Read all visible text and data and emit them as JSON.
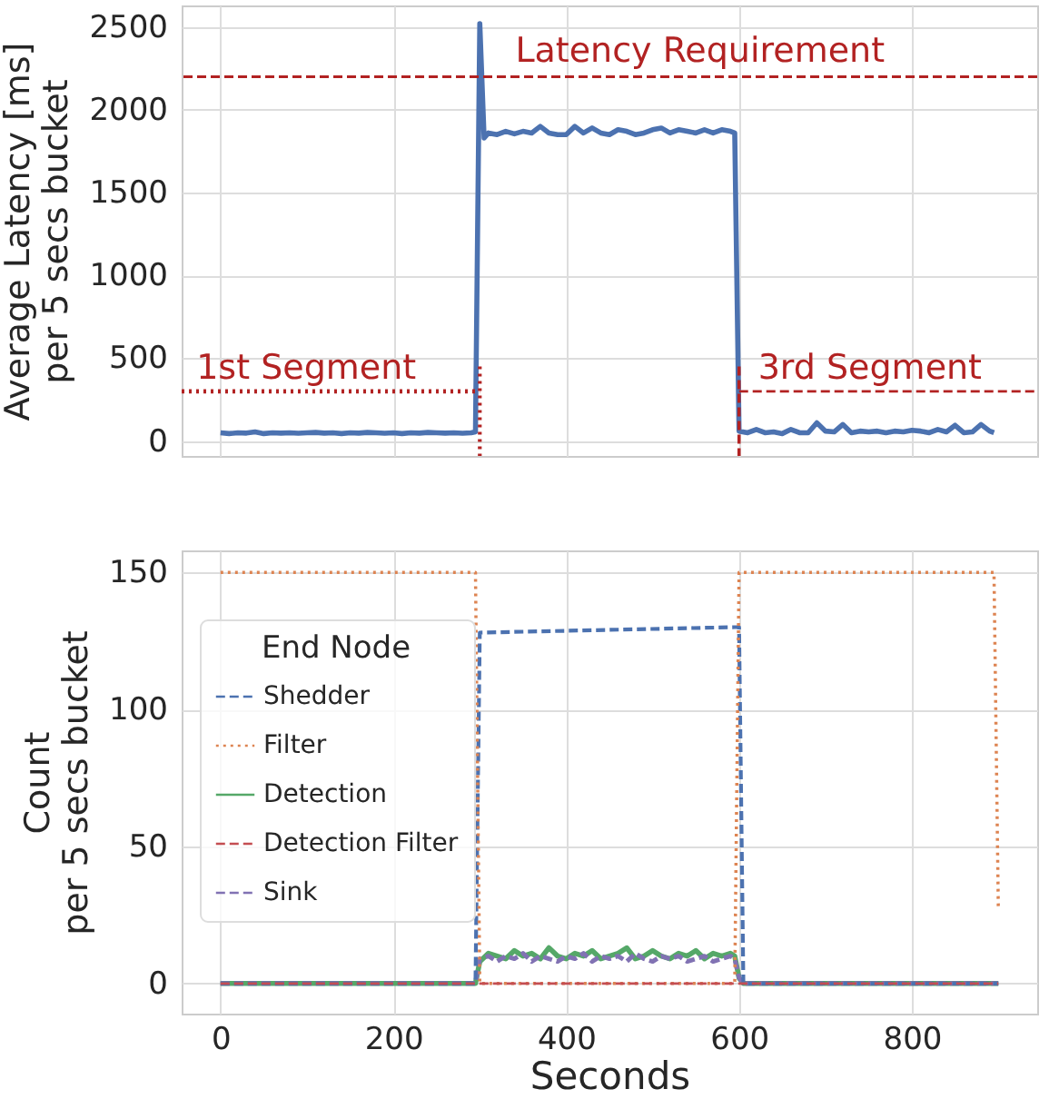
{
  "chart_data": [
    {
      "type": "line",
      "ylabel": "Average Latency [ms]\nper 5 secs bucket",
      "xlim": [
        -45,
        945
      ],
      "xticks": [
        0,
        200,
        400,
        600,
        800
      ],
      "ylim": [
        -90,
        2630
      ],
      "yticks": [
        0,
        500,
        1000,
        1500,
        2000,
        2500
      ],
      "grid": true,
      "tick_labels": "y",
      "series": [
        {
          "color": "#4c72b0",
          "line_style": "solid",
          "x": [
            0,
            10,
            20,
            30,
            40,
            50,
            60,
            70,
            80,
            90,
            100,
            110,
            120,
            130,
            140,
            150,
            160,
            170,
            180,
            190,
            200,
            210,
            220,
            230,
            240,
            250,
            260,
            270,
            280,
            290,
            295,
            300,
            305,
            310,
            320,
            330,
            340,
            350,
            360,
            370,
            380,
            390,
            400,
            410,
            420,
            430,
            440,
            450,
            460,
            470,
            480,
            490,
            500,
            510,
            520,
            530,
            540,
            550,
            560,
            570,
            580,
            590,
            595,
            600,
            610,
            620,
            630,
            640,
            650,
            660,
            670,
            680,
            690,
            700,
            710,
            720,
            730,
            740,
            750,
            760,
            770,
            780,
            790,
            800,
            810,
            820,
            830,
            840,
            850,
            860,
            870,
            880,
            890,
            895
          ],
          "values": [
            50,
            45,
            50,
            48,
            55,
            45,
            50,
            48,
            50,
            47,
            50,
            52,
            48,
            50,
            45,
            50,
            48,
            52,
            50,
            47,
            50,
            45,
            50,
            48,
            52,
            50,
            48,
            50,
            47,
            50,
            55,
            2520,
            1830,
            1860,
            1850,
            1870,
            1855,
            1870,
            1860,
            1900,
            1860,
            1850,
            1850,
            1900,
            1860,
            1890,
            1860,
            1850,
            1880,
            1870,
            1850,
            1860,
            1880,
            1890,
            1860,
            1880,
            1870,
            1860,
            1880,
            1860,
            1880,
            1870,
            1860,
            60,
            50,
            70,
            50,
            55,
            45,
            70,
            50,
            50,
            110,
            60,
            55,
            100,
            50,
            60,
            55,
            60,
            50,
            60,
            55,
            65,
            60,
            50,
            70,
            55,
            95,
            50,
            55,
            100,
            60,
            50
          ]
        },
        {
          "color": "#b22222",
          "line_style": "dotted",
          "x": [
            -45,
            300
          ],
          "values": [
            300,
            300
          ]
        },
        {
          "color": "#b22222",
          "line_style": "dotted",
          "x": [
            300,
            300
          ],
          "values": [
            450,
            -90
          ]
        },
        {
          "color": "#b22222",
          "line_style": "dashed",
          "x": [
            600,
            600
          ],
          "values": [
            450,
            -90
          ]
        },
        {
          "color": "#b22222",
          "line_style": "dashed",
          "x": [
            600,
            945
          ],
          "values": [
            300,
            300
          ]
        }
      ],
      "ref_lines": [
        {
          "axis": "y",
          "value": 2200,
          "label": "Latency Requirement",
          "color": "#b22222",
          "line_style": "dashed"
        }
      ],
      "annotations": [
        {
          "text": "1st Segment",
          "x": -28,
          "y": 330
        },
        {
          "text": "3rd Segment",
          "x": 622,
          "y": 330
        }
      ]
    },
    {
      "type": "line",
      "xlabel": "Seconds",
      "ylabel": "Count\nper 5 secs bucket",
      "xlim": [
        -45,
        945
      ],
      "xticks": [
        0,
        200,
        400,
        600,
        800
      ],
      "ylim": [
        -11,
        158
      ],
      "yticks": [
        0,
        50,
        100,
        150
      ],
      "grid": true,
      "legend": "left",
      "legend_title": "End Node",
      "series": [
        {
          "name": "Shedder",
          "color": "#4c72b0",
          "line_style": "dashed",
          "x": [
            0,
            295,
            300,
            595,
            600,
            605,
            900
          ],
          "values": [
            0,
            0,
            128,
            130,
            130,
            0,
            0
          ]
        },
        {
          "name": "Filter",
          "color": "#dd8452",
          "line_style": "dotted",
          "x": [
            0,
            295,
            300,
            595,
            600,
            895,
            900
          ],
          "values": [
            150,
            150,
            0,
            0,
            150,
            150,
            28
          ]
        },
        {
          "name": "Detection",
          "color": "#55a868",
          "line_style": "solid",
          "x": [
            0,
            295,
            300,
            310,
            320,
            330,
            340,
            350,
            360,
            370,
            380,
            390,
            400,
            410,
            420,
            430,
            440,
            450,
            460,
            470,
            480,
            490,
            500,
            510,
            520,
            530,
            540,
            550,
            560,
            570,
            580,
            590,
            595,
            600,
            605,
            900
          ],
          "values": [
            0,
            0,
            8,
            11,
            10,
            9,
            12,
            10,
            11,
            9,
            13,
            10,
            9,
            11,
            10,
            12,
            9,
            10,
            11,
            13,
            9,
            10,
            12,
            10,
            9,
            11,
            10,
            12,
            9,
            11,
            10,
            11,
            10,
            2,
            0,
            0
          ]
        },
        {
          "name": "Detection Filter",
          "color": "#c44e52",
          "line_style": "dashed",
          "x": [
            0,
            900
          ],
          "values": [
            0,
            0
          ]
        },
        {
          "name": "Sink",
          "color": "#8172b3",
          "line_style": "dashed",
          "x": [
            0,
            295,
            300,
            310,
            320,
            330,
            340,
            350,
            360,
            370,
            380,
            390,
            400,
            410,
            420,
            430,
            440,
            450,
            460,
            470,
            480,
            490,
            500,
            510,
            520,
            530,
            540,
            550,
            560,
            570,
            580,
            590,
            595,
            600,
            605,
            900
          ],
          "values": [
            0,
            0,
            9,
            10,
            8,
            10,
            9,
            11,
            8,
            10,
            9,
            8,
            10,
            9,
            11,
            8,
            10,
            9,
            10,
            8,
            11,
            9,
            8,
            10,
            9,
            10,
            8,
            9,
            10,
            8,
            9,
            10,
            9,
            2,
            0,
            0
          ]
        }
      ]
    }
  ]
}
